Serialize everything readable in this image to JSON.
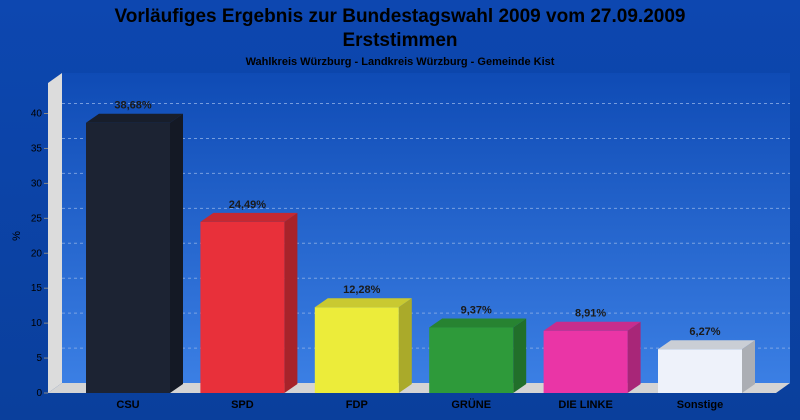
{
  "chart_data": {
    "type": "bar",
    "title": "Vorläufiges Ergebnis zur Bundestagswahl 2009 vom 27.09.2009",
    "title_line2": "Erststimmen",
    "subtitle": "Wahlkreis Würzburg - Landkreis Würzburg - Gemeinde Kist",
    "ylabel": "%",
    "xlabel": "",
    "ylim": [
      0,
      40
    ],
    "yticks": [
      0,
      5,
      10,
      15,
      20,
      25,
      30,
      35,
      40
    ],
    "grid": true,
    "categories": [
      "CSU",
      "SPD",
      "FDP",
      "GRÜNE",
      "DIE LINKE",
      "Sonstige"
    ],
    "values": [
      38.68,
      24.49,
      12.28,
      9.37,
      8.91,
      6.27
    ],
    "value_labels": [
      "38,68%",
      "24,49%",
      "12,28%",
      "9,37%",
      "8,91%",
      "6,27%"
    ],
    "colors": [
      "#1c2333",
      "#e8303a",
      "#ecec3a",
      "#2e9a3a",
      "#ea35a6",
      "#eef2fa"
    ],
    "background": "#0b45a8"
  }
}
